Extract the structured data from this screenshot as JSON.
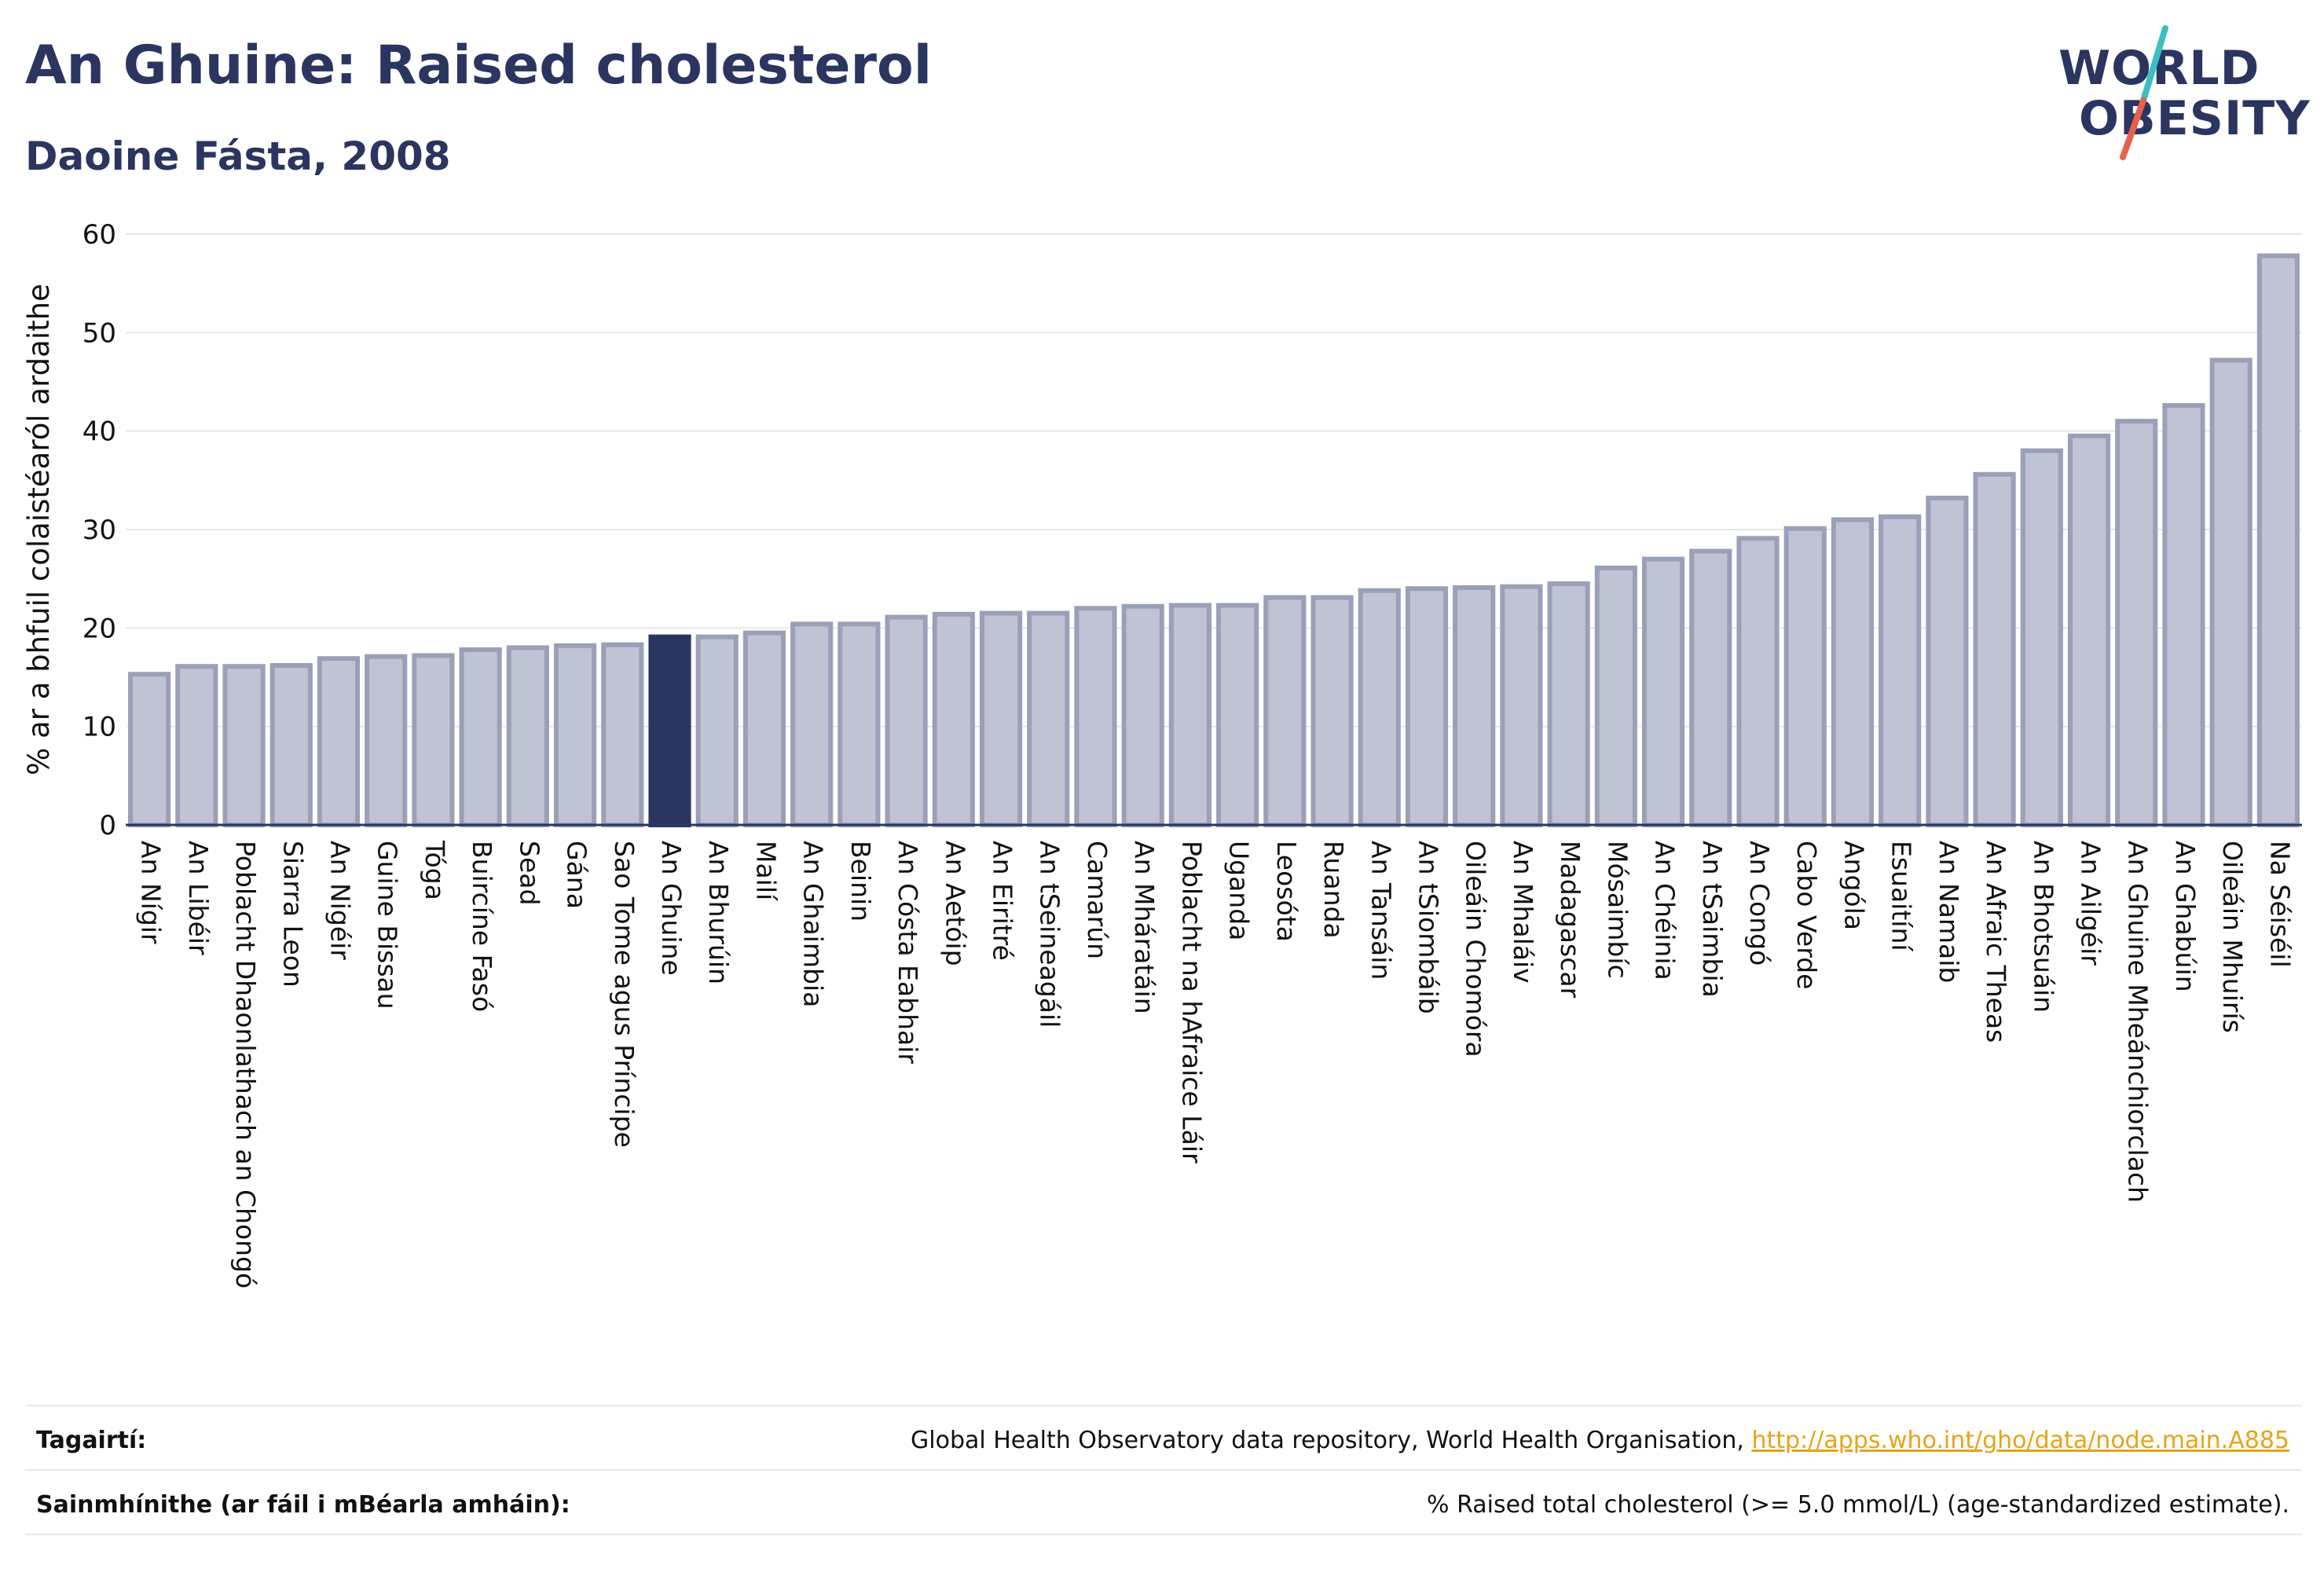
{
  "header": {
    "title": "An Ghuine: Raised cholesterol",
    "subtitle": "Daoine Fásta, 2008"
  },
  "logo": {
    "line1": "WORLD",
    "line2": "OBESITY",
    "colors": {
      "text": "#2a3560",
      "slash_top": "#3bbfc0",
      "slash_bottom": "#e8604c"
    }
  },
  "chart_data": {
    "type": "bar",
    "ylabel": "% ar a bhfuil colaistéaról ardaithe",
    "ylim": [
      0,
      60
    ],
    "yticks": [
      0,
      10,
      20,
      30,
      40,
      50,
      60
    ],
    "grid": true,
    "highlight": "An Ghuine",
    "colors": {
      "bar": "#bfc3d3",
      "bar_edge": "#9aa0b8",
      "highlight": "#2a3560"
    },
    "categories": [
      "An Nígir",
      "An Libéir",
      "Poblacht Dhaonlathach an Chongó",
      "Siarra Leon",
      "An Nigéir",
      "Guine Bissau",
      "Tóga",
      "Buircíne Fasó",
      "Sead",
      "Gána",
      "Sao Tome agus Príncipe",
      "An Ghuine",
      "An Bhurúin",
      "Mailí",
      "An Ghaimbia",
      "Beinin",
      "An Cósta Eabhair",
      "An Aetóip",
      "An Eiritré",
      "An tSeineagáil",
      "Camarún",
      "An Mháratáin",
      "Poblacht na hAfraice Láir",
      "Uganda",
      "Leosóta",
      "Ruanda",
      "An Tansáin",
      "An tSiombáib",
      "Oileáin Chomóra",
      "An Mhaláiv",
      "Madagascar",
      "Mósaimbíc",
      "An Chéinia",
      "An tSaimbia",
      "An Congó",
      "Cabo Verde",
      "Angóla",
      "Esuaitíní",
      "An Namaib",
      "An Afraic Theas",
      "An Bhotsuáin",
      "An Ailgéir",
      "An Ghuine Mheánchiorclach",
      "An Ghabúin",
      "Oileáin Mhuirís",
      "Na Séiséil"
    ],
    "values": [
      15.3,
      16.1,
      16.1,
      16.2,
      16.9,
      17.1,
      17.2,
      17.8,
      18.0,
      18.2,
      18.3,
      19.1,
      19.1,
      19.5,
      20.4,
      20.4,
      21.1,
      21.4,
      21.5,
      21.5,
      22.0,
      22.2,
      22.3,
      22.3,
      23.1,
      23.1,
      23.8,
      24.0,
      24.1,
      24.2,
      24.5,
      26.1,
      27.0,
      27.8,
      29.1,
      30.1,
      31.0,
      31.3,
      33.2,
      35.6,
      38.0,
      39.5,
      41.0,
      42.6,
      47.2,
      57.8
    ]
  },
  "footer": {
    "references_label": "Tagairtí:",
    "references_text": "Global Health Observatory data repository, World Health Organisation, ",
    "references_link": "http://apps.who.int/gho/data/node.main.A885",
    "definitions_label": "Sainmhínithe (ar fáil i mBéarla amháin):",
    "definitions_text": "% Raised total cholesterol (>= 5.0 mmol/L) (age-standardized estimate)."
  }
}
